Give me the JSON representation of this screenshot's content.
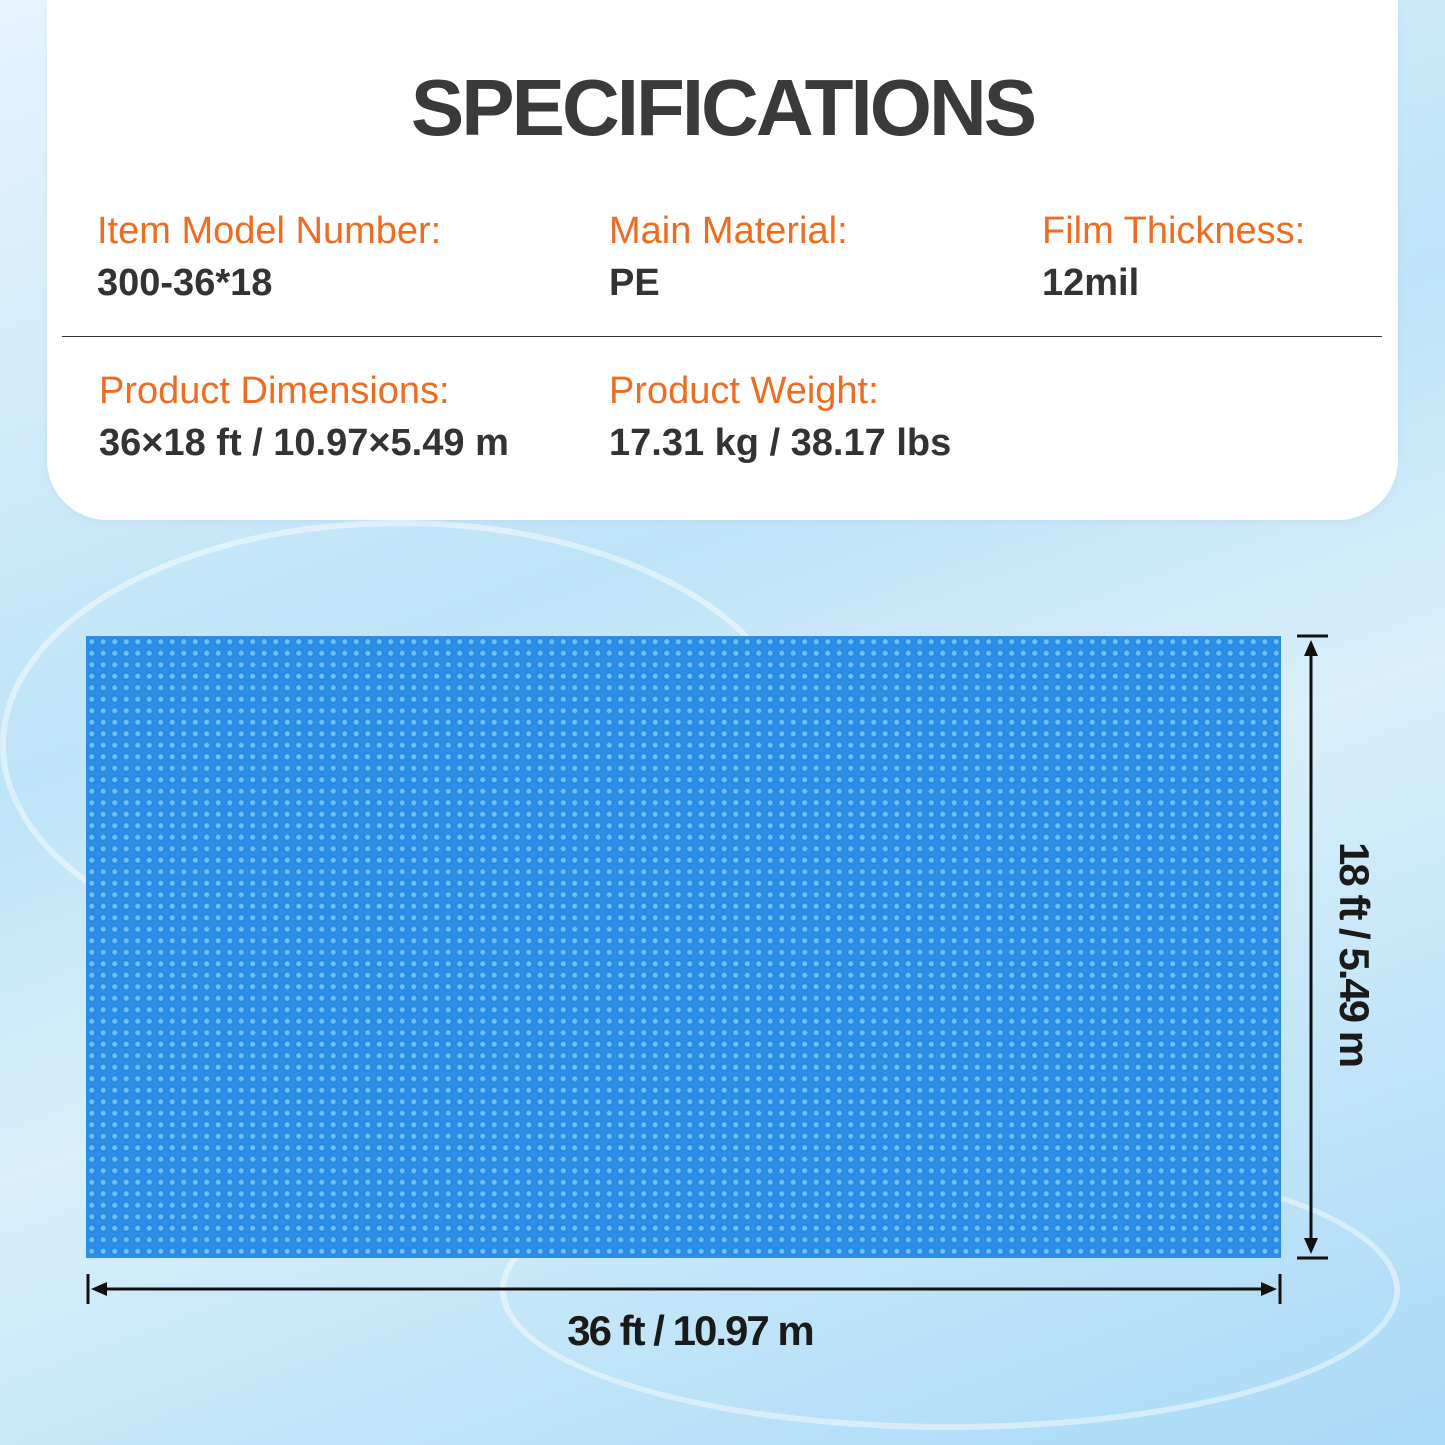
{
  "title": "SPECIFICATIONS",
  "specs": [
    {
      "label": "Item Model Number:",
      "value": "300-36*18"
    },
    {
      "label": "Main Material:",
      "value": "PE"
    },
    {
      "label": "Film Thickness:",
      "value": "12mil"
    },
    {
      "label": "Product Dimensions:",
      "value": "36×18 ft / 10.97×5.49 m"
    },
    {
      "label": "Product Weight:",
      "value": "17.31 kg / 38.17 lbs"
    }
  ],
  "dimensions": {
    "width": "36 ft / 10.97 m",
    "height": "18 ft / 5.49 m"
  },
  "colors": {
    "label": "#ee6b22",
    "cover": "#2c8ee6",
    "title": "#3a3a3a"
  }
}
